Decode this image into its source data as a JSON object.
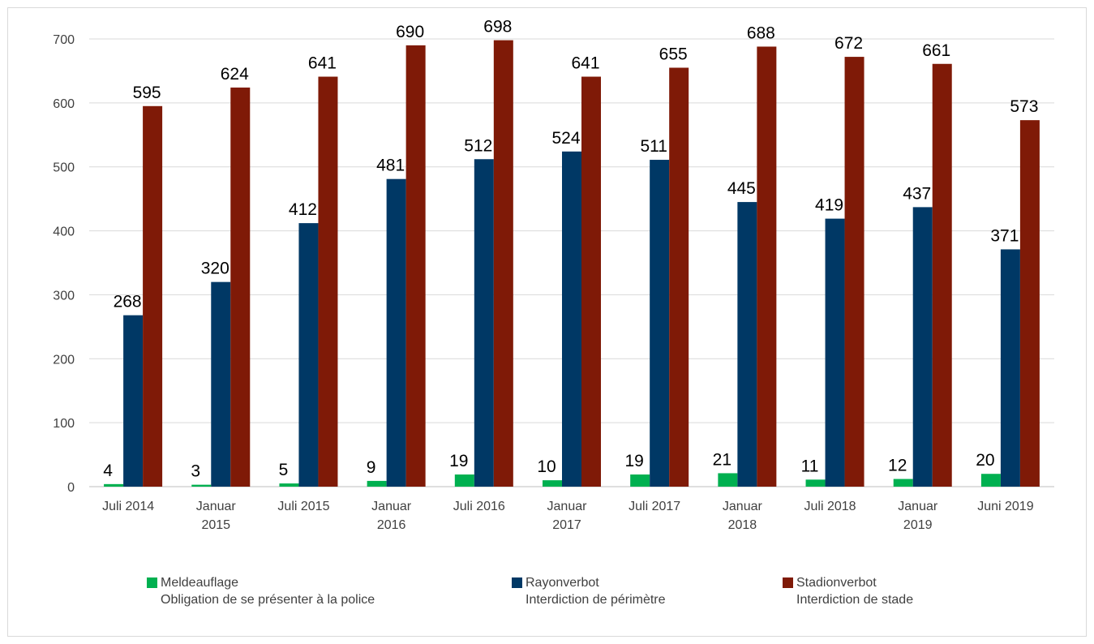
{
  "chart_data": {
    "type": "bar",
    "title": "",
    "xlabel": "",
    "ylabel": "",
    "ylim": [
      0,
      700
    ],
    "yticks": [
      0,
      100,
      200,
      300,
      400,
      500,
      600,
      700
    ],
    "grid": true,
    "legend_position": "bottom",
    "categories": [
      [
        "Juli 2014"
      ],
      [
        "Januar",
        "2015"
      ],
      [
        "Juli 2015"
      ],
      [
        "Januar",
        "2016"
      ],
      [
        "Juli 2016"
      ],
      [
        "Januar",
        "2017"
      ],
      [
        "Juli 2017"
      ],
      [
        "Januar",
        "2018"
      ],
      [
        "Juli 2018"
      ],
      [
        "Januar",
        "2019"
      ],
      [
        "Juni 2019"
      ]
    ],
    "series": [
      {
        "name": "Meldeauflage",
        "name2": "Obligation de se présenter à la police",
        "color": "#00b050",
        "values": [
          4,
          3,
          5,
          9,
          19,
          10,
          19,
          21,
          11,
          12,
          20
        ]
      },
      {
        "name": "Rayonverbot",
        "name2": "Interdiction de périmètre",
        "color": "#003865",
        "values": [
          268,
          320,
          412,
          481,
          512,
          524,
          511,
          445,
          419,
          437,
          371
        ]
      },
      {
        "name": "Stadionverbot",
        "name2": "Interdiction de stade",
        "color": "#7f1a07",
        "values": [
          595,
          624,
          641,
          690,
          698,
          641,
          655,
          688,
          672,
          661,
          573
        ]
      }
    ]
  }
}
